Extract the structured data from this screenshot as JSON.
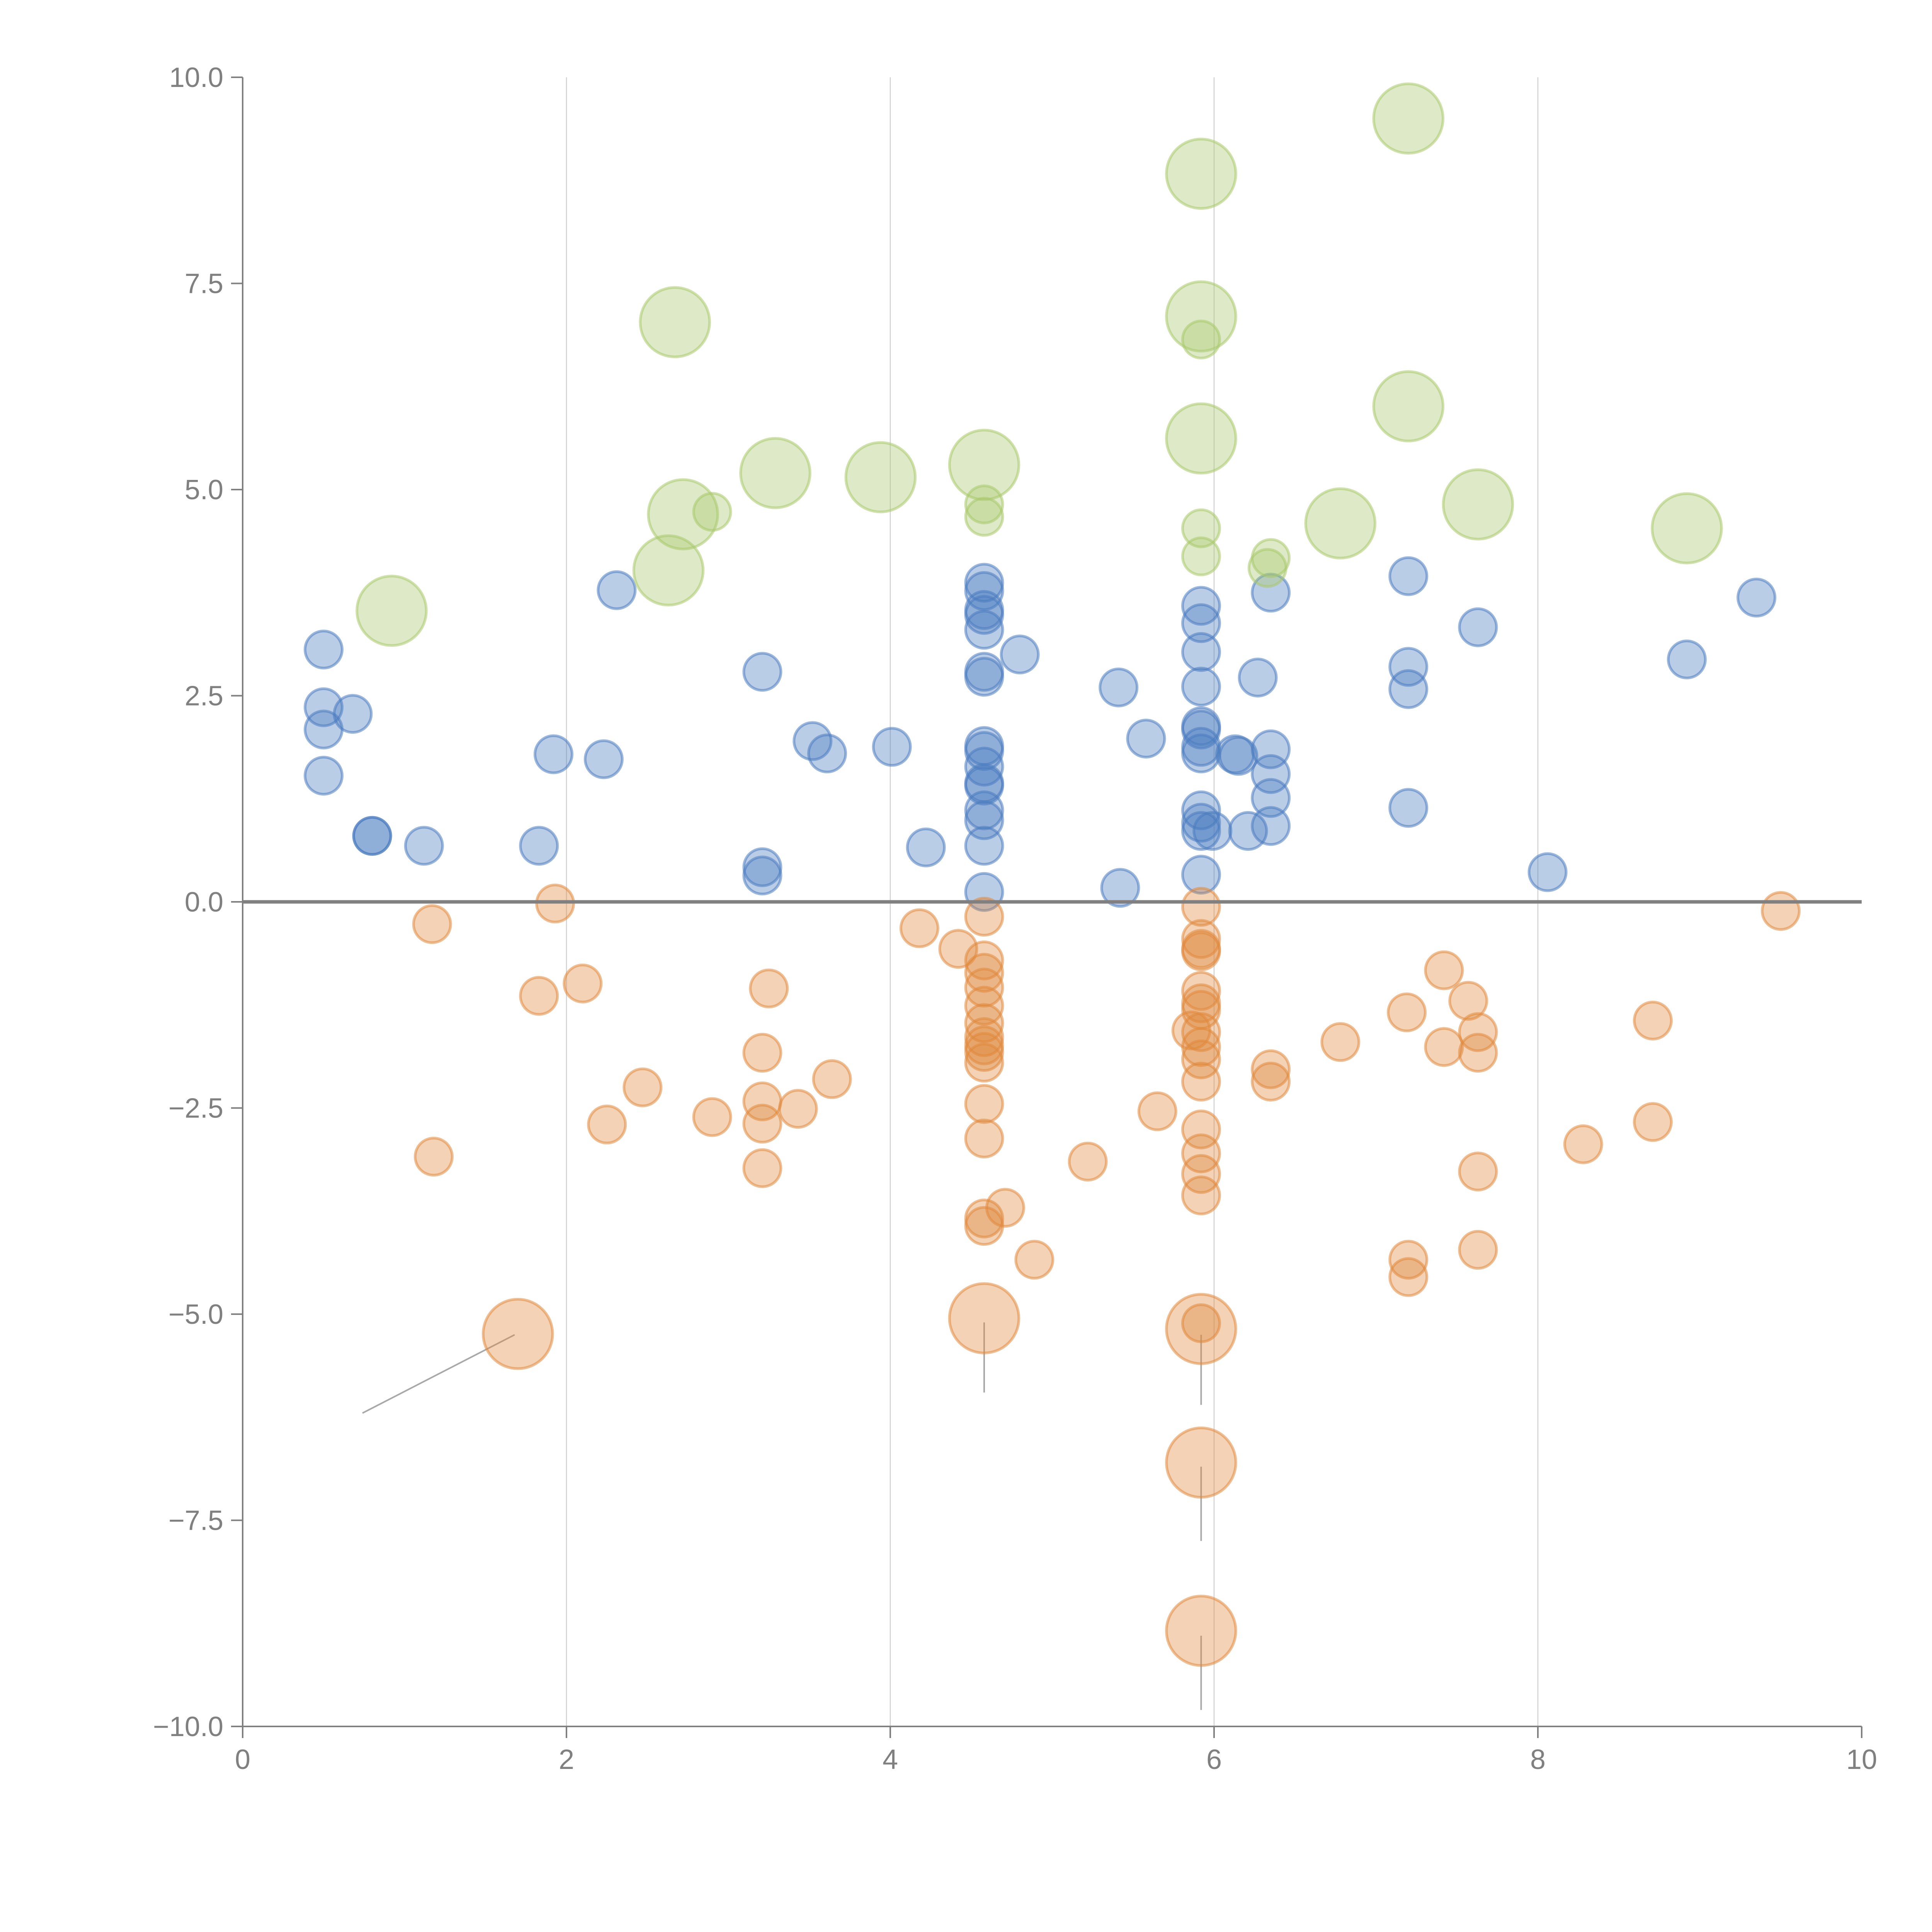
{
  "chart_data": {
    "type": "scatter",
    "title": "",
    "xlabel": "",
    "ylabel": "",
    "xlim": [
      0,
      10
    ],
    "ylim": [
      -10,
      10
    ],
    "xticks": [
      "0",
      "2",
      "4",
      "6",
      "8",
      "10"
    ],
    "yticks": [
      "10.0",
      "7.5",
      "5.0",
      "2.5",
      "0.0",
      "−2.5",
      "−5.0",
      "−7.5",
      "−10.0"
    ],
    "xtick_values": [
      0,
      2,
      4,
      6,
      8,
      10
    ],
    "ytick_values": [
      10,
      7.5,
      5,
      2.5,
      0,
      -2.5,
      -5,
      -7.5,
      -10
    ],
    "grid": "vertical lines at x ticks",
    "reference_line_y": 0,
    "legend": "none",
    "size_note": "size is relative marker area: 1 = small, 3.5 = large",
    "series": [
      {
        "name": "blue",
        "color": "#4a7bbf",
        "points": [
          [
            0.5,
            3.06,
            1
          ],
          [
            0.5,
            2.36,
            1
          ],
          [
            0.5,
            2.09,
            1
          ],
          [
            0.68,
            2.28,
            1
          ],
          [
            0.5,
            1.53,
            1
          ],
          [
            0.8,
            0.8,
            1
          ],
          [
            0.8,
            0.8,
            1
          ],
          [
            1.12,
            0.68,
            1
          ],
          [
            1.83,
            0.68,
            1
          ],
          [
            1.92,
            1.79,
            1
          ],
          [
            2.23,
            1.73,
            1
          ],
          [
            2.31,
            3.78,
            1
          ],
          [
            3.21,
            2.79,
            1
          ],
          [
            3.21,
            0.42,
            1
          ],
          [
            3.21,
            0.32,
            1
          ],
          [
            3.52,
            1.95,
            1
          ],
          [
            3.61,
            1.8,
            1
          ],
          [
            4.01,
            1.88,
            1
          ],
          [
            4.22,
            0.66,
            1
          ],
          [
            4.58,
            3.87,
            1
          ],
          [
            4.58,
            3.77,
            1
          ],
          [
            4.58,
            3.54,
            1
          ],
          [
            4.58,
            3.48,
            1
          ],
          [
            4.58,
            3.3,
            1
          ],
          [
            4.58,
            2.79,
            1
          ],
          [
            4.58,
            2.73,
            1
          ],
          [
            4.58,
            1.89,
            1
          ],
          [
            4.58,
            1.83,
            1
          ],
          [
            4.58,
            1.64,
            1
          ],
          [
            4.58,
            1.44,
            1
          ],
          [
            4.58,
            1.41,
            1
          ],
          [
            4.58,
            1.11,
            1
          ],
          [
            4.58,
            0.99,
            1
          ],
          [
            4.58,
            0.68,
            1
          ],
          [
            4.58,
            0.12,
            1
          ],
          [
            4.8,
            3.0,
            1
          ],
          [
            5.41,
            2.6,
            1
          ],
          [
            5.58,
            1.98,
            1
          ],
          [
            5.42,
            0.17,
            1
          ],
          [
            5.92,
            3.59,
            1
          ],
          [
            5.92,
            3.38,
            1
          ],
          [
            5.92,
            3.03,
            1
          ],
          [
            5.92,
            2.61,
            1
          ],
          [
            5.92,
            2.13,
            1
          ],
          [
            5.92,
            2.09,
            1
          ],
          [
            5.92,
            1.88,
            1
          ],
          [
            5.92,
            1.8,
            1
          ],
          [
            5.92,
            1.11,
            1
          ],
          [
            5.92,
            0.96,
            1
          ],
          [
            5.92,
            0.86,
            1
          ],
          [
            5.92,
            0.33,
            1
          ],
          [
            5.99,
            0.86,
            1
          ],
          [
            6.13,
            1.79,
            1
          ],
          [
            6.15,
            1.77,
            1
          ],
          [
            6.21,
            0.86,
            1
          ],
          [
            6.27,
            2.72,
            1
          ],
          [
            6.35,
            3.75,
            1
          ],
          [
            6.35,
            1.85,
            1
          ],
          [
            6.35,
            1.55,
            1
          ],
          [
            6.35,
            1.26,
            1
          ],
          [
            6.35,
            0.92,
            1
          ],
          [
            7.2,
            3.95,
            1
          ],
          [
            7.2,
            2.85,
            1
          ],
          [
            7.2,
            2.58,
            1
          ],
          [
            7.2,
            1.14,
            1
          ],
          [
            7.63,
            3.33,
            1
          ],
          [
            8.06,
            0.36,
            1
          ],
          [
            8.92,
            2.94,
            1
          ],
          [
            9.35,
            3.69,
            1
          ]
        ]
      },
      {
        "name": "green",
        "color": "#a9c96b",
        "points": [
          [
            0.92,
            3.53,
            3.5
          ],
          [
            2.67,
            7.03,
            3.5
          ],
          [
            2.63,
            4.02,
            3.5
          ],
          [
            2.72,
            4.7,
            3.5
          ],
          [
            2.9,
            4.73,
            1
          ],
          [
            3.29,
            5.2,
            3.5
          ],
          [
            3.94,
            5.15,
            3.5
          ],
          [
            4.58,
            5.3,
            3.5
          ],
          [
            4.58,
            4.82,
            1
          ],
          [
            4.58,
            4.67,
            1
          ],
          [
            5.92,
            8.83,
            3.5
          ],
          [
            5.92,
            7.1,
            3.5
          ],
          [
            5.92,
            6.82,
            1
          ],
          [
            5.92,
            5.62,
            3.5
          ],
          [
            5.92,
            4.53,
            1
          ],
          [
            5.92,
            4.19,
            1
          ],
          [
            6.35,
            4.17,
            1
          ],
          [
            6.33,
            4.05,
            1
          ],
          [
            6.78,
            4.59,
            3.5
          ],
          [
            7.2,
            9.5,
            3.5
          ],
          [
            7.2,
            6.01,
            3.5
          ],
          [
            7.63,
            4.82,
            3.5
          ],
          [
            8.92,
            4.53,
            3.5
          ]
        ]
      },
      {
        "name": "orange",
        "color": "#e0893c",
        "points": [
          [
            1.17,
            -0.27,
            1
          ],
          [
            1.18,
            -3.09,
            1
          ],
          [
            1.7,
            -5.24,
            3.5
          ],
          [
            1.83,
            -1.14,
            1
          ],
          [
            1.93,
            -0.02,
            1
          ],
          [
            2.1,
            -0.99,
            1
          ],
          [
            2.25,
            -2.7,
            1
          ],
          [
            2.47,
            -2.25,
            1
          ],
          [
            2.9,
            -2.61,
            1
          ],
          [
            3.21,
            -1.83,
            1
          ],
          [
            3.21,
            -2.42,
            1
          ],
          [
            3.21,
            -2.69,
            1
          ],
          [
            3.21,
            -3.23,
            1
          ],
          [
            3.25,
            -1.05,
            1
          ],
          [
            3.43,
            -2.51,
            1
          ],
          [
            3.64,
            -2.15,
            1
          ],
          [
            4.18,
            -0.32,
            1
          ],
          [
            4.42,
            -0.57,
            1
          ],
          [
            4.58,
            -0.18,
            1
          ],
          [
            4.58,
            -0.71,
            1
          ],
          [
            4.58,
            -0.86,
            1
          ],
          [
            4.58,
            -1.04,
            1
          ],
          [
            4.58,
            -1.26,
            1
          ],
          [
            4.58,
            -1.47,
            1
          ],
          [
            4.58,
            -1.64,
            1
          ],
          [
            4.58,
            -1.74,
            1
          ],
          [
            4.58,
            -1.82,
            1
          ],
          [
            4.58,
            -1.95,
            1
          ],
          [
            4.58,
            -2.45,
            1
          ],
          [
            4.58,
            -2.87,
            1
          ],
          [
            4.58,
            -3.84,
            1
          ],
          [
            4.58,
            -3.93,
            1
          ],
          [
            4.58,
            -5.05,
            3.5
          ],
          [
            4.71,
            -3.71,
            1
          ],
          [
            4.89,
            -4.34,
            1
          ],
          [
            5.22,
            -3.15,
            1
          ],
          [
            5.65,
            -2.54,
            1
          ],
          [
            5.92,
            -0.06,
            1
          ],
          [
            5.92,
            -0.45,
            1
          ],
          [
            5.92,
            -0.57,
            1
          ],
          [
            5.92,
            -0.6,
            1
          ],
          [
            5.92,
            -1.08,
            1
          ],
          [
            5.92,
            -1.23,
            1
          ],
          [
            5.92,
            -1.31,
            1
          ],
          [
            5.92,
            -1.58,
            1
          ],
          [
            5.92,
            -1.76,
            1
          ],
          [
            5.92,
            -1.91,
            1
          ],
          [
            5.92,
            -2.18,
            1
          ],
          [
            5.92,
            -2.76,
            1
          ],
          [
            5.92,
            -3.05,
            1
          ],
          [
            5.92,
            -3.3,
            1
          ],
          [
            5.92,
            -3.56,
            1
          ],
          [
            5.86,
            -1.56,
            1
          ],
          [
            5.92,
            -5.11,
            1
          ],
          [
            5.92,
            -5.18,
            3.5
          ],
          [
            5.92,
            -6.8,
            3.5
          ],
          [
            5.92,
            -8.84,
            3.5
          ],
          [
            6.35,
            -2.03,
            1
          ],
          [
            6.35,
            -2.18,
            1
          ],
          [
            6.78,
            -1.7,
            1
          ],
          [
            7.19,
            -1.34,
            1
          ],
          [
            7.2,
            -4.34,
            1
          ],
          [
            7.2,
            -4.55,
            1
          ],
          [
            7.42,
            -0.83,
            1
          ],
          [
            7.42,
            -1.76,
            1
          ],
          [
            7.57,
            -1.2,
            1
          ],
          [
            7.63,
            -1.58,
            1
          ],
          [
            7.63,
            -1.83,
            1
          ],
          [
            7.63,
            -3.27,
            1
          ],
          [
            7.63,
            -4.22,
            1
          ],
          [
            8.28,
            -2.94,
            1
          ],
          [
            8.71,
            -1.44,
            1
          ],
          [
            8.71,
            -2.67,
            1
          ],
          [
            9.5,
            -0.11,
            1
          ]
        ]
      }
    ],
    "leader_lines": [
      [
        [
          1.68,
          -5.25
        ],
        [
          0.74,
          -6.2
        ]
      ],
      [
        [
          4.58,
          -5.1
        ],
        [
          4.58,
          -5.95
        ]
      ],
      [
        [
          5.92,
          -5.25
        ],
        [
          5.92,
          -6.1
        ]
      ],
      [
        [
          5.92,
          -6.85
        ],
        [
          5.92,
          -7.75
        ]
      ],
      [
        [
          5.92,
          -8.9
        ],
        [
          5.92,
          -9.8
        ]
      ]
    ]
  }
}
